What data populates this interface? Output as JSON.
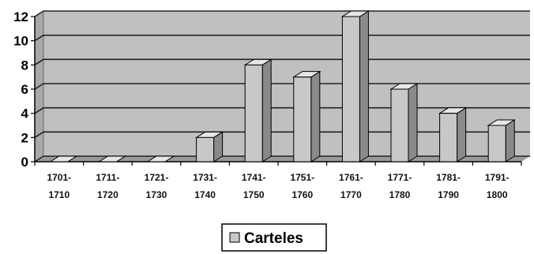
{
  "chart_data": {
    "type": "bar",
    "categories": [
      [
        "1701-",
        "1710"
      ],
      [
        "1711-",
        "1720"
      ],
      [
        "1721-",
        "1730"
      ],
      [
        "1731-",
        "1740"
      ],
      [
        "1741-",
        "1750"
      ],
      [
        "1751-",
        "1760"
      ],
      [
        "1761-",
        "1770"
      ],
      [
        "1771-",
        "1780"
      ],
      [
        "1781-",
        "1790"
      ],
      [
        "1791-",
        "1800"
      ]
    ],
    "series": [
      {
        "name": "Carteles",
        "values": [
          0,
          0,
          0,
          2,
          8,
          7,
          12,
          6,
          4,
          3
        ]
      }
    ],
    "ylim": [
      0,
      12
    ],
    "yticks": [
      "0",
      "2",
      "4",
      "6",
      "8",
      "10",
      "12"
    ],
    "grid": true,
    "legend_position": "bottom-center",
    "colors": {
      "plot_background": "#c0c0c0",
      "bar_front": "#c8c8c8",
      "bar_top": "#e6e6e6",
      "bar_side": "#8a8a8a"
    }
  }
}
